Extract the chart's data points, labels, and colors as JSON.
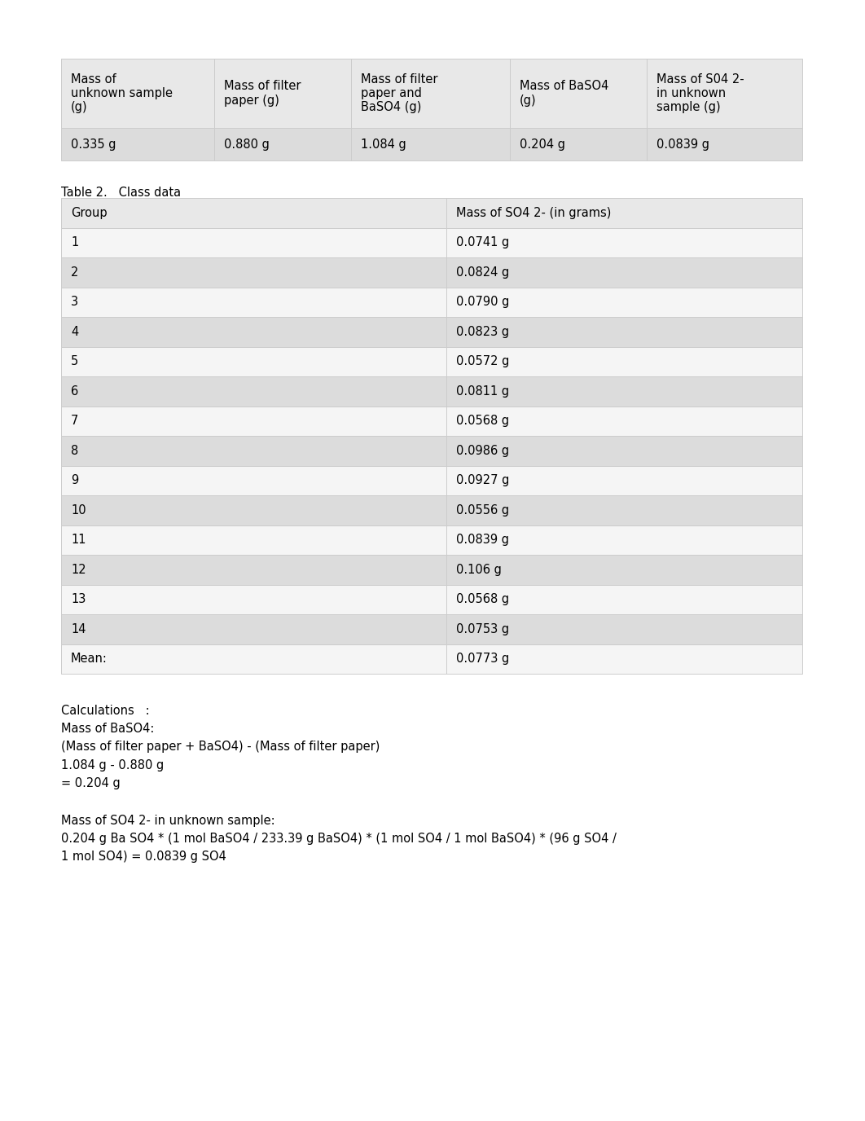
{
  "page_bg": "#ffffff",
  "table1_headers": [
    "Mass of\nunknown sample\n(g)",
    "Mass of filter\npaper (g)",
    "Mass of filter\npaper and\nBaSO4 (g)",
    "Mass of BaSO4\n(g)",
    "Mass of S04 2-\nin unknown\nsample (g)"
  ],
  "table1_data": [
    "0.335 g",
    "0.880 g",
    "1.084 g",
    "0.204 g",
    "0.0839 g"
  ],
  "table2_caption": "Table 2.   Class data",
  "table2_headers": [
    "Group",
    "Mass of SO4 2- (in grams)"
  ],
  "table2_groups": [
    "1",
    "2",
    "3",
    "4",
    "5",
    "6",
    "7",
    "8",
    "9",
    "10",
    "11",
    "12",
    "13",
    "14",
    "Mean:"
  ],
  "table2_values": [
    "0.0741 g",
    "0.0824 g",
    "0.0790 g",
    "0.0823 g",
    "0.0572 g",
    "0.0811 g",
    "0.0568 g",
    "0.0986 g",
    "0.0927 g",
    "0.0556 g",
    "0.0839 g",
    "0.106 g",
    "0.0568 g",
    "0.0753 g",
    "0.0773 g"
  ],
  "calc_text": "Calculations   :\nMass of BaSO4:\n(Mass of filter paper + BaSO4) - (Mass of filter paper)\n1.084 g - 0.880 g\n= 0.204 g",
  "calc_text2": "Mass of SO4 2- in unknown sample:\n0.204 g Ba SO4 * (1 mol BaSO4 / 233.39 g BaSO4) * (1 mol SO4 / 1 mol BaSO4) * (96 g SO4 /\n1 mol SO4) = 0.0839 g SO4",
  "header_bg": "#e8e8e8",
  "row_even_bg": "#f5f5f5",
  "row_odd_bg": "#dcdcdc",
  "border_color": "#cccccc",
  "font_size": 10.5,
  "font_family": "DejaVu Sans"
}
